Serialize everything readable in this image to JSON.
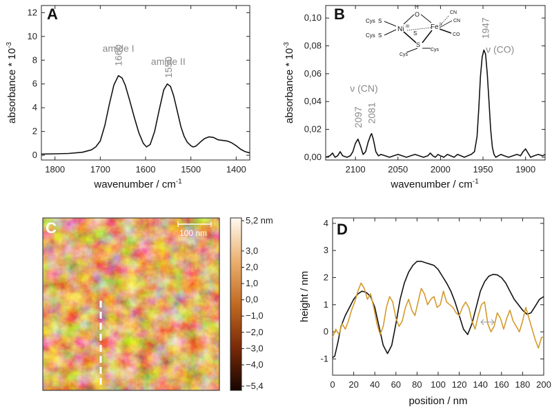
{
  "colors": {
    "black_trace": "#111111",
    "orange_trace": "#d49a2a",
    "annotation": "#8a8a8a"
  },
  "chart_data": [
    {
      "id": "A",
      "type": "line",
      "panel_label": "A",
      "xlabel": "wavenumber / cm",
      "xlabel_sup": "-1",
      "ylabel": "absorbance * 10",
      "ylabel_sup": "-3",
      "xlim": [
        1830,
        1370
      ],
      "ylim": [
        -0.4,
        12.6
      ],
      "xticks": [
        1800,
        1700,
        1600,
        1500,
        1400
      ],
      "yticks": [
        0,
        2,
        4,
        6,
        8,
        10,
        12
      ],
      "ytick_labels": [
        "0",
        "2",
        "4",
        "6",
        "8",
        "10",
        "12"
      ],
      "annotations": [
        {
          "text": "amide I",
          "x": 1660,
          "y": 8.7,
          "rotate": false
        },
        {
          "text": "1660",
          "x": 1660,
          "y": 7.5,
          "rotate": true
        },
        {
          "text": "amide II",
          "x": 1550,
          "y": 7.6,
          "rotate": false
        },
        {
          "text": "1550",
          "x": 1550,
          "y": 6.5,
          "rotate": true
        }
      ],
      "series": [
        {
          "x": [
            1830,
            1800,
            1770,
            1740,
            1720,
            1710,
            1700,
            1690,
            1680,
            1670,
            1660,
            1652,
            1645,
            1635,
            1625,
            1615,
            1605,
            1598,
            1590,
            1580,
            1570,
            1560,
            1552,
            1545,
            1538,
            1530,
            1522,
            1515,
            1508,
            1500,
            1495,
            1490,
            1485,
            1478,
            1470,
            1460,
            1450,
            1445,
            1440,
            1430,
            1420,
            1410,
            1400,
            1390,
            1380,
            1370
          ],
          "y": [
            0.1,
            0.12,
            0.15,
            0.25,
            0.45,
            0.7,
            1.2,
            2.5,
            4.3,
            5.9,
            6.7,
            6.5,
            5.9,
            4.6,
            3.2,
            1.9,
            1.0,
            0.7,
            0.9,
            2.0,
            3.8,
            5.5,
            6.0,
            5.8,
            5.0,
            3.7,
            2.4,
            1.6,
            1.1,
            0.8,
            0.7,
            0.75,
            0.9,
            1.15,
            1.4,
            1.55,
            1.5,
            1.4,
            1.3,
            1.25,
            1.2,
            1.05,
            0.8,
            0.5,
            0.3,
            0.2
          ]
        }
      ]
    },
    {
      "id": "B",
      "type": "line",
      "panel_label": "B",
      "xlabel": "wavenumber / cm",
      "xlabel_sup": "-1",
      "ylabel": "absorbance * 10",
      "ylabel_sup": "-3",
      "xlim": [
        2135,
        1877
      ],
      "ylim": [
        -0.002,
        0.109
      ],
      "xticks": [
        2100,
        2050,
        2000,
        1950,
        1900
      ],
      "yticks": [
        0,
        0.02,
        0.04,
        0.06,
        0.08,
        0.1
      ],
      "ytick_labels": [
        "0,00",
        "0,02",
        "0,04",
        "0,06",
        "0,08",
        "0,10"
      ],
      "annotations": [
        {
          "text": "ν (CN)",
          "x": 2090,
          "y": 0.047,
          "rotate": false
        },
        {
          "text": "2097",
          "x": 2097,
          "y": 0.021,
          "rotate": true
        },
        {
          "text": "2081",
          "x": 2081,
          "y": 0.024,
          "rotate": true
        },
        {
          "text": "1947",
          "x": 1947,
          "y": 0.085,
          "rotate": true
        },
        {
          "text": "ν (CO)",
          "x": 1930,
          "y": 0.075,
          "rotate": false
        }
      ],
      "structure_labels": [
        "Cys",
        "S",
        "Cys",
        "S",
        "Ni",
        "III",
        "O",
        "H",
        "Fe",
        "II",
        "CN",
        "CN",
        "CO",
        "S",
        "S",
        "Cys",
        "Cys"
      ],
      "series": [
        {
          "x": [
            2135,
            2130,
            2127,
            2124,
            2121,
            2118,
            2115,
            2110,
            2106,
            2103,
            2100,
            2097,
            2094,
            2091,
            2088,
            2085,
            2082,
            2081,
            2079,
            2076,
            2073,
            2070,
            2065,
            2060,
            2055,
            2050,
            2045,
            2040,
            2035,
            2030,
            2025,
            2020,
            2015,
            2012,
            2009,
            2006,
            2003,
            2000,
            1996,
            1992,
            1988,
            1984,
            1980,
            1976,
            1972,
            1968,
            1964,
            1960,
            1957,
            1955,
            1953,
            1951,
            1949,
            1947,
            1945,
            1943,
            1941,
            1939,
            1937,
            1935,
            1932,
            1929,
            1925,
            1920,
            1915,
            1910,
            1906,
            1903,
            1900,
            1897,
            1894,
            1890,
            1885,
            1880,
            1877
          ],
          "y": [
            0.0,
            0.001,
            0.003,
            0.0,
            0.001,
            0.004,
            0.001,
            0.0,
            0.001,
            0.004,
            0.01,
            0.013,
            0.008,
            0.002,
            0.004,
            0.011,
            0.016,
            0.017,
            0.013,
            0.004,
            0.001,
            0.002,
            0.001,
            0.0,
            0.001,
            0.002,
            0.001,
            0.0,
            0.001,
            0.002,
            0.001,
            0.0,
            0.001,
            0.003,
            0.001,
            0.0,
            0.002,
            0.001,
            0.0,
            0.002,
            0.001,
            0.0,
            0.002,
            0.001,
            0.0,
            0.001,
            0.002,
            0.004,
            0.015,
            0.035,
            0.058,
            0.072,
            0.077,
            0.074,
            0.06,
            0.04,
            0.02,
            0.007,
            0.002,
            0.0,
            0.001,
            0.002,
            0.001,
            0.0,
            0.001,
            0.002,
            0.001,
            0.004,
            0.006,
            0.003,
            0.0,
            0.001,
            0.002,
            0.001,
            0.002
          ]
        }
      ]
    },
    {
      "id": "C",
      "type": "heatmap",
      "panel_label": "C",
      "scalebar": "100 nm",
      "colorbar_labels": [
        "5,2 nm",
        "3,0",
        "2,0",
        "1,0",
        "0,0",
        "−1,0",
        "−2,0",
        "−3,0",
        "−4,0",
        "−5,4"
      ],
      "clim": [
        -5.4,
        5.2
      ]
    },
    {
      "id": "D",
      "type": "line",
      "panel_label": "D",
      "xlabel": "position / nm",
      "ylabel": "height / nm",
      "xlim": [
        0,
        200
      ],
      "ylim": [
        -1.6,
        4.2
      ],
      "xticks": [
        0,
        20,
        40,
        60,
        80,
        100,
        120,
        140,
        160,
        180,
        200
      ],
      "xtick_labels": [
        "0",
        "20",
        "40",
        "60",
        "80",
        "100",
        "120",
        "140",
        "160",
        "180",
        "200"
      ],
      "yticks": [
        -1,
        0,
        1,
        2,
        3,
        4
      ],
      "ytick_labels": [
        "-1",
        "0",
        "1",
        "2",
        "3",
        "4"
      ],
      "series": [
        {
          "x": [
            0,
            2,
            5,
            8,
            12,
            16,
            20,
            24,
            28,
            32,
            36,
            40,
            44,
            48,
            52,
            56,
            60,
            64,
            68,
            72,
            76,
            80,
            84,
            88,
            92,
            96,
            100,
            104,
            108,
            112,
            116,
            120,
            124,
            128,
            132,
            136,
            140,
            144,
            148,
            152,
            156,
            160,
            164,
            168,
            172,
            176,
            180,
            184,
            188,
            192,
            196,
            200
          ],
          "y": [
            -0.95,
            -0.9,
            -0.4,
            0.2,
            0.6,
            0.9,
            1.2,
            1.4,
            1.5,
            1.45,
            1.3,
            0.9,
            0.2,
            -0.5,
            -0.8,
            -0.5,
            0.3,
            1.2,
            1.8,
            2.2,
            2.45,
            2.6,
            2.6,
            2.55,
            2.5,
            2.45,
            2.3,
            2.05,
            1.8,
            1.5,
            1.1,
            0.6,
            0.1,
            -0.1,
            0.3,
            0.9,
            1.5,
            1.85,
            2.05,
            2.12,
            2.1,
            2.0,
            1.8,
            1.5,
            1.2,
            1.0,
            0.8,
            0.65,
            0.7,
            0.95,
            1.2,
            1.3
          ]
        },
        {
          "x": [
            0,
            3,
            6,
            9,
            12,
            15,
            18,
            21,
            24,
            27,
            30,
            33,
            36,
            39,
            42,
            45,
            48,
            51,
            54,
            57,
            60,
            63,
            66,
            69,
            72,
            75,
            78,
            81,
            84,
            87,
            90,
            93,
            96,
            99,
            102,
            105,
            108,
            111,
            114,
            117,
            120,
            123,
            126,
            129,
            132,
            135,
            138,
            141,
            144,
            147,
            150,
            153,
            156,
            159,
            162,
            165,
            168,
            171,
            174,
            177,
            180,
            183,
            186,
            189,
            192,
            195,
            198,
            200
          ],
          "y": [
            -0.2,
            0.1,
            -0.1,
            0.3,
            0.1,
            0.4,
            0.8,
            1.1,
            1.5,
            1.8,
            1.6,
            1.2,
            1.4,
            0.9,
            0.3,
            -0.1,
            0.2,
            0.9,
            1.3,
            1.1,
            0.5,
            0.2,
            0.4,
            0.9,
            1.2,
            0.8,
            0.6,
            1.1,
            1.6,
            1.4,
            1.0,
            1.2,
            1.3,
            0.9,
            1.0,
            1.5,
            1.1,
            1.0,
            0.9,
            0.7,
            0.6,
            0.9,
            1.1,
            0.9,
            0.4,
            0.1,
            0.6,
            1.0,
            1.1,
            0.3,
            0.0,
            0.2,
            0.7,
            0.5,
            0.1,
            0.5,
            0.8,
            0.4,
            0.2,
            0.0,
            0.4,
            0.9,
            0.5,
            0.1,
            -0.3,
            -0.6,
            -0.2,
            -0.2
          ]
        }
      ]
    }
  ]
}
